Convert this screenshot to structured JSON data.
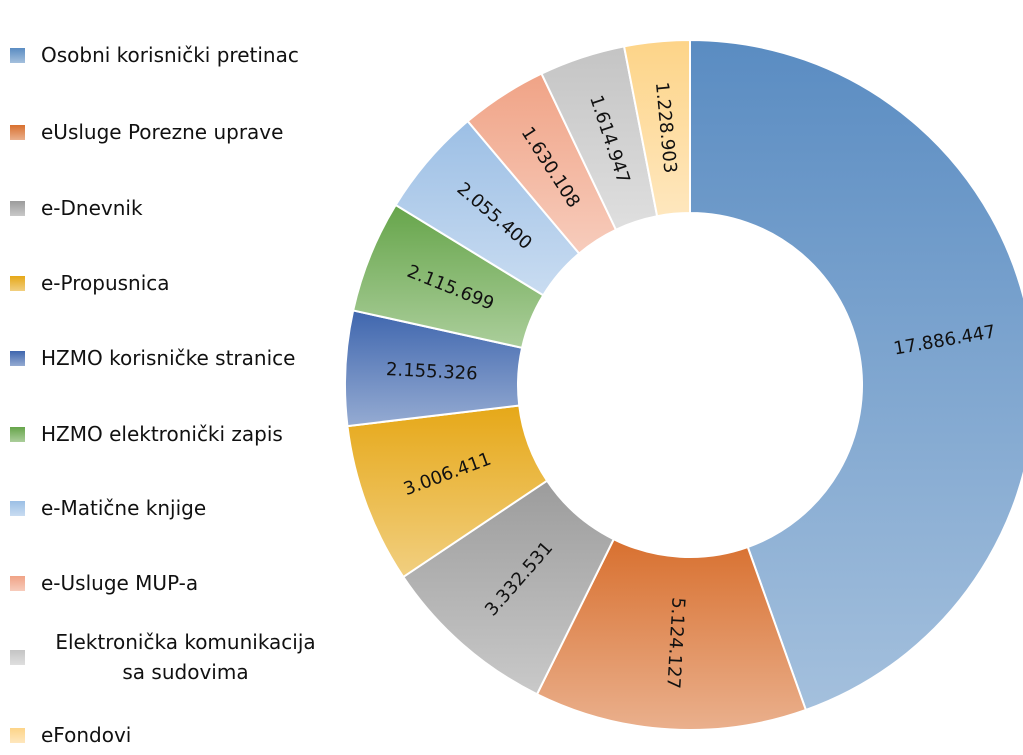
{
  "chart_data": {
    "type": "donut",
    "categories": [
      "Osobni korisnički pretinac",
      "eUsluge Porezne uprave",
      "e-Dnevnik",
      "e-Propusnica",
      "HZMO korisničke stranice",
      "HZMO elektronički zapis",
      "e-Matične knjige",
      "e-Usluge MUP-a",
      "Elektronička komunikacija sa sudovima",
      "eFondovi"
    ],
    "values": [
      17886447,
      5124127,
      3332531,
      3006411,
      2155326,
      2115699,
      2055400,
      1630108,
      1614947,
      1228903
    ],
    "value_labels": [
      "17.886.447",
      "5.124.127",
      "3.332.531",
      "3.006.411",
      "2.155.326",
      "2.115.699",
      "2.055.400",
      "1.630.108",
      "1.614.947",
      "1.228.903"
    ],
    "colors": [
      "#5a8cc2",
      "#d8702f",
      "#9c9c9c",
      "#e6a818",
      "#3f66ae",
      "#66a54a",
      "#9cbfe5",
      "#f0a386",
      "#c4c4c4",
      "#fdd488"
    ],
    "legend": "left"
  }
}
